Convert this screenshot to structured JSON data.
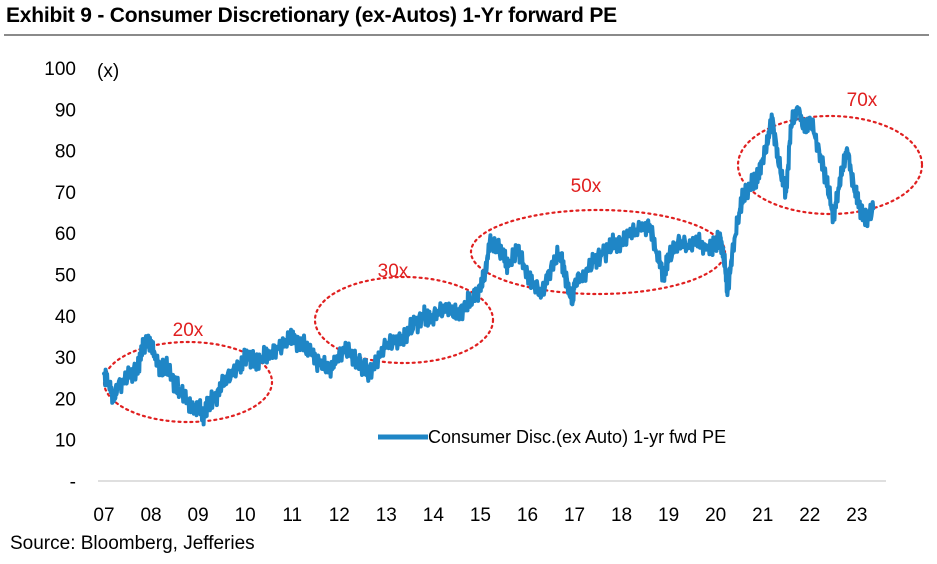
{
  "header": {
    "title": "Exhibit 9 - Consumer Discretionary (ex-Autos) 1-Yr forward PE"
  },
  "footer": {
    "source": "Source: Bloomberg, Jefferies"
  },
  "colors": {
    "series": "#1f86c6",
    "annotation": "#e02020",
    "rule": "#8a8a8a"
  },
  "chart_data": {
    "type": "line",
    "title": "",
    "ylabel": "(x)",
    "xlabel": "",
    "ylim": [
      0,
      100
    ],
    "yticks": [
      0,
      10,
      20,
      30,
      40,
      50,
      60,
      70,
      80,
      90,
      100
    ],
    "ytick_labels": [
      "-",
      "10",
      "20",
      "30",
      "40",
      "50",
      "60",
      "70",
      "80",
      "90",
      "100"
    ],
    "xlim": [
      2007.0,
      2023.45
    ],
    "xticks": [
      2007,
      2008,
      2009,
      2010,
      2011,
      2012,
      2013,
      2014,
      2015,
      2016,
      2017,
      2018,
      2019,
      2020,
      2021,
      2022,
      2023
    ],
    "xtick_labels": [
      "07",
      "08",
      "09",
      "10",
      "11",
      "12",
      "13",
      "14",
      "15",
      "16",
      "17",
      "18",
      "19",
      "20",
      "21",
      "22",
      "23"
    ],
    "grid": false,
    "legend": {
      "position": "bottom-right",
      "entries": [
        "Consumer Disc.(ex Auto) 1-yr fwd PE"
      ]
    },
    "series": [
      {
        "name": "Consumer Disc.(ex Auto) 1-yr fwd PE",
        "x": [
          2007.0,
          2007.1,
          2007.2,
          2007.3,
          2007.5,
          2007.7,
          2007.8,
          2007.9,
          2008.0,
          2008.1,
          2008.2,
          2008.3,
          2008.5,
          2008.6,
          2008.8,
          2008.9,
          2009.0,
          2009.1,
          2009.2,
          2009.35,
          2009.5,
          2009.7,
          2009.9,
          2010.0,
          2010.2,
          2010.35,
          2010.5,
          2010.7,
          2010.9,
          2011.0,
          2011.2,
          2011.4,
          2011.6,
          2011.8,
          2011.9,
          2012.1,
          2012.3,
          2012.5,
          2012.6,
          2012.8,
          2013.0,
          2013.2,
          2013.4,
          2013.6,
          2013.8,
          2013.9,
          2014.1,
          2014.3,
          2014.5,
          2014.7,
          2014.8,
          2015.0,
          2015.1,
          2015.2,
          2015.35,
          2015.5,
          2015.6,
          2015.8,
          2016.0,
          2016.1,
          2016.3,
          2016.5,
          2016.7,
          2016.8,
          2016.95,
          2017.0,
          2017.2,
          2017.4,
          2017.6,
          2017.8,
          2018.0,
          2018.2,
          2018.4,
          2018.6,
          2018.75,
          2018.9,
          2019.0,
          2019.2,
          2019.4,
          2019.6,
          2019.8,
          2020.0,
          2020.1,
          2020.2,
          2020.25,
          2020.35,
          2020.5,
          2020.6,
          2020.8,
          2020.9,
          2021.0,
          2021.1,
          2021.2,
          2021.35,
          2021.5,
          2021.6,
          2021.75,
          2021.9,
          2022.0,
          2022.2,
          2022.35,
          2022.5,
          2022.6,
          2022.7,
          2022.8,
          2022.95,
          2023.05,
          2023.2,
          2023.35
        ],
        "values": [
          26,
          24,
          20,
          23,
          25,
          27,
          31,
          34,
          33,
          30,
          27,
          28,
          24,
          22,
          19,
          17,
          18,
          16,
          18,
          20,
          23,
          26,
          28,
          30,
          29,
          30,
          31,
          32,
          34,
          35,
          33,
          31,
          28,
          27,
          29,
          32,
          30,
          28,
          26,
          29,
          33,
          34,
          35,
          38,
          40,
          39,
          41,
          42,
          40,
          43,
          44,
          47,
          50,
          58,
          57,
          54,
          52,
          56,
          50,
          48,
          45,
          52,
          55,
          50,
          43,
          48,
          50,
          53,
          55,
          57,
          58,
          60,
          61,
          62,
          55,
          50,
          54,
          58,
          57,
          58,
          56,
          57,
          59,
          52,
          45,
          55,
          65,
          70,
          72,
          74,
          78,
          82,
          88,
          76,
          70,
          86,
          90,
          85,
          88,
          80,
          73,
          64,
          70,
          76,
          80,
          70,
          67,
          63,
          66
        ]
      }
    ],
    "annotations": [
      {
        "label": "20x",
        "x": 2008.9,
        "y": 24
      },
      {
        "label": "30x",
        "x": 2013.0,
        "y": 39
      },
      {
        "label": "50x",
        "x": 2016.75,
        "y": 56
      },
      {
        "label": "70x",
        "x": 2021.9,
        "y": 78
      }
    ]
  }
}
